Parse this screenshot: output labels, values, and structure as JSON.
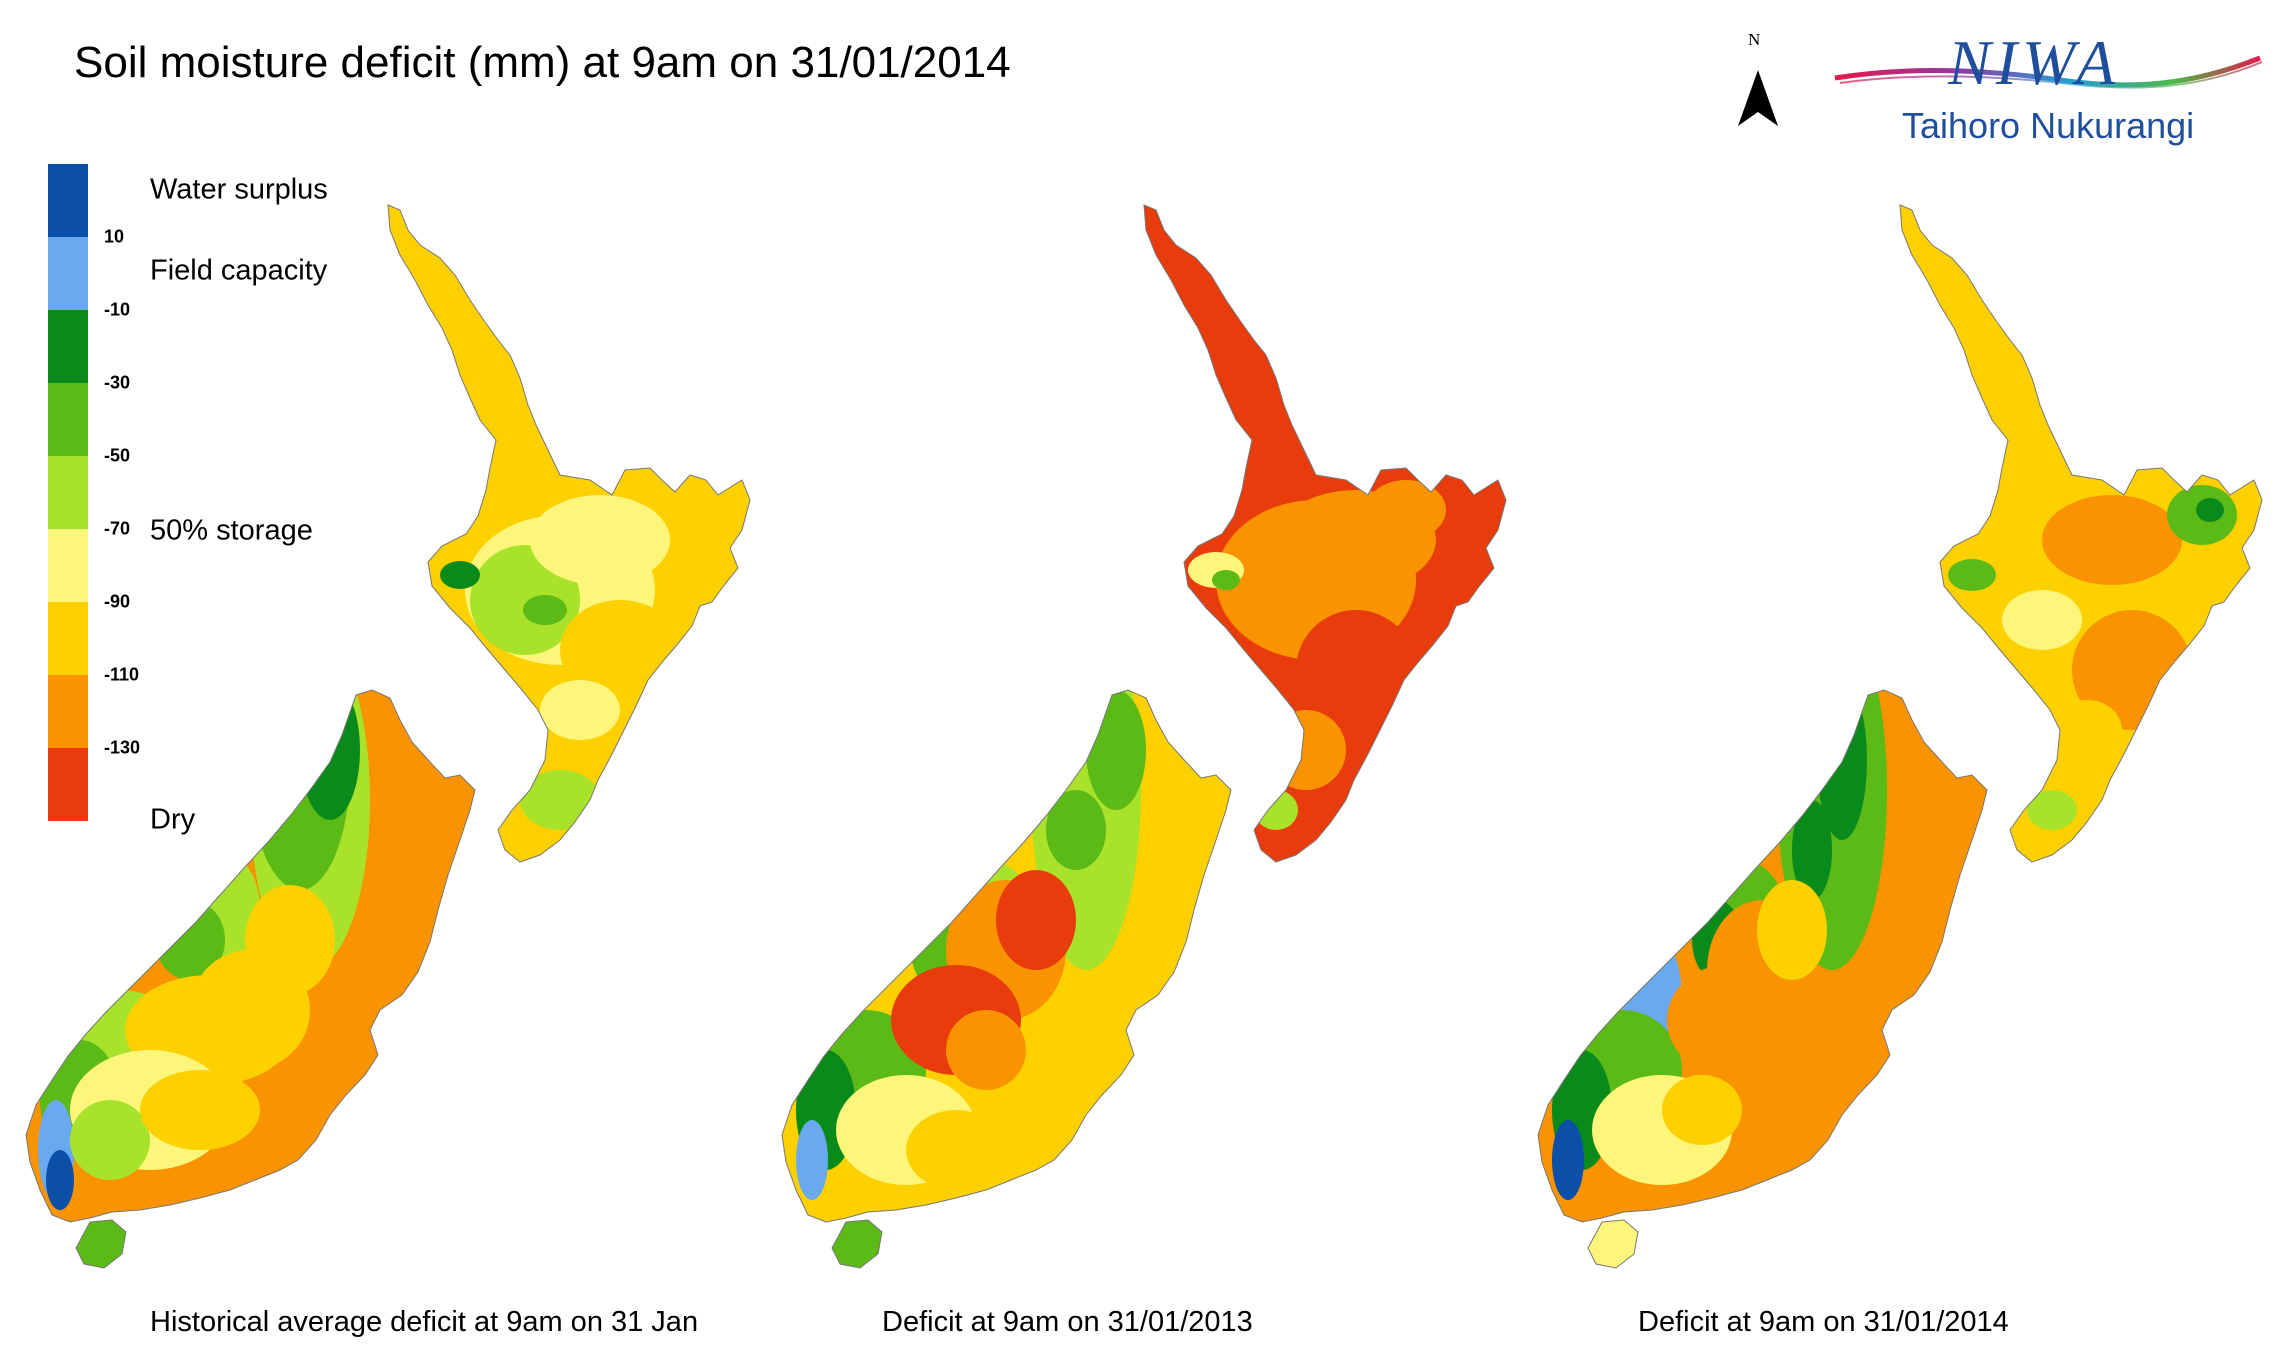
{
  "title": "Soil moisture deficit (mm) at  9am on 31/01/2014",
  "north_label": "N",
  "logo": {
    "brand": "NIWA",
    "tagline": "Taihoro Nukurangi"
  },
  "legend": {
    "classes": [
      {
        "color": "#0b4fa8"
      },
      {
        "color": "#6aa9f0"
      },
      {
        "color": "#0a8a1a"
      },
      {
        "color": "#5cba16"
      },
      {
        "color": "#a8e22a"
      },
      {
        "color": "#fdf67a"
      },
      {
        "color": "#fdd000"
      },
      {
        "color": "#fa9300"
      },
      {
        "color": "#e83c0c"
      }
    ],
    "ticks": [
      "10",
      "-10",
      "-30",
      "-50",
      "-70",
      "-90",
      "-110",
      "-130"
    ],
    "labels": {
      "surplus": "Water surplus",
      "field_capacity": "Field capacity",
      "storage": "50% storage",
      "dry": "Dry"
    }
  },
  "maps": [
    {
      "caption": "Historical average deficit at  9am on 31 Jan",
      "scheme": "historical"
    },
    {
      "caption": "Deficit at  9am on 31/01/2013",
      "scheme": "y2013"
    },
    {
      "caption": "Deficit at  9am on 31/01/2014",
      "scheme": "y2014"
    }
  ]
}
